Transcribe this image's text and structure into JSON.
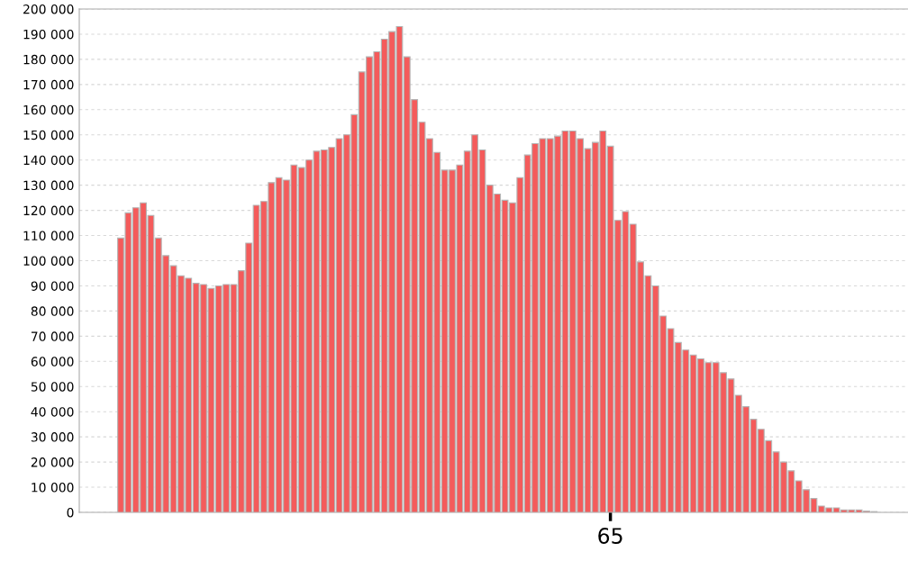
{
  "chart_data": {
    "type": "bar",
    "categories": [
      null,
      null,
      null,
      null,
      null,
      null,
      null,
      null,
      null,
      null,
      null,
      null,
      null,
      null,
      null,
      null,
      null,
      null,
      null,
      null,
      null,
      null,
      null,
      null,
      null,
      null,
      null,
      null,
      null,
      null,
      null,
      null,
      null,
      null,
      null,
      null,
      null,
      null,
      null,
      null,
      null,
      null,
      null,
      null,
      null,
      null,
      null,
      null,
      null,
      null,
      null,
      null,
      null,
      null,
      null,
      null,
      null,
      null,
      null,
      null,
      null,
      null,
      null,
      null,
      null,
      null,
      null,
      null,
      null,
      null,
      "65",
      null,
      null,
      null,
      null,
      null,
      null,
      null,
      null,
      null,
      null,
      null,
      null,
      null,
      null,
      null,
      null,
      null,
      null,
      null,
      null,
      null,
      null,
      null,
      null,
      null,
      null,
      null,
      null,
      null,
      null,
      null,
      null,
      null,
      null,
      null,
      null,
      null,
      null,
      null
    ],
    "values": [
      null,
      null,
      null,
      null,
      null,
      109000,
      119000,
      121000,
      123000,
      118000,
      109000,
      102000,
      98000,
      94000,
      93000,
      91000,
      90500,
      89000,
      90000,
      90500,
      90500,
      96000,
      107000,
      122000,
      123500,
      131000,
      133000,
      132000,
      138000,
      137000,
      140000,
      143500,
      144000,
      145000,
      148500,
      150000,
      158000,
      175000,
      181000,
      183000,
      188000,
      191000,
      193000,
      181000,
      164000,
      155000,
      148500,
      143000,
      136000,
      136000,
      138000,
      143500,
      150000,
      144000,
      130000,
      126500,
      124000,
      123000,
      133000,
      142000,
      146500,
      148500,
      148500,
      149500,
      151500,
      151500,
      148500,
      144500,
      147000,
      151500,
      145500,
      116000,
      119500,
      114500,
      99500,
      94000,
      90000,
      78000,
      73000,
      67500,
      64500,
      62500,
      61000,
      59500,
      59500,
      55500,
      53000,
      46500,
      42000,
      37000,
      33000,
      28500,
      24000,
      20000,
      16500,
      12500,
      9000,
      5500,
      2500,
      1800,
      1800,
      1000,
      1000,
      1000,
      500,
      300,
      null,
      null,
      null,
      null
    ],
    "color": "#f45b5b",
    "ylim": [
      0,
      200000
    ],
    "yticks": [
      {
        "value": 0,
        "label": "0"
      },
      {
        "value": 10000,
        "label": "10 000"
      },
      {
        "value": 20000,
        "label": "20 000"
      },
      {
        "value": 30000,
        "label": "30 000"
      },
      {
        "value": 40000,
        "label": "40 000"
      },
      {
        "value": 50000,
        "label": "50 000"
      },
      {
        "value": 60000,
        "label": "60 000"
      },
      {
        "value": 70000,
        "label": "70 000"
      },
      {
        "value": 80000,
        "label": "80 000"
      },
      {
        "value": 90000,
        "label": "90 000"
      },
      {
        "value": 100000,
        "label": "100 000"
      },
      {
        "value": 110000,
        "label": "110 000"
      },
      {
        "value": 120000,
        "label": "120 000"
      },
      {
        "value": 130000,
        "label": "130 000"
      },
      {
        "value": 140000,
        "label": "140 000"
      },
      {
        "value": 150000,
        "label": "150 000"
      },
      {
        "value": 160000,
        "label": "160 000"
      },
      {
        "value": 170000,
        "label": "170 000"
      },
      {
        "value": 180000,
        "label": "180 000"
      },
      {
        "value": 190000,
        "label": "190 000"
      },
      {
        "value": 200000,
        "label": "200 000"
      }
    ],
    "grid": "y"
  }
}
